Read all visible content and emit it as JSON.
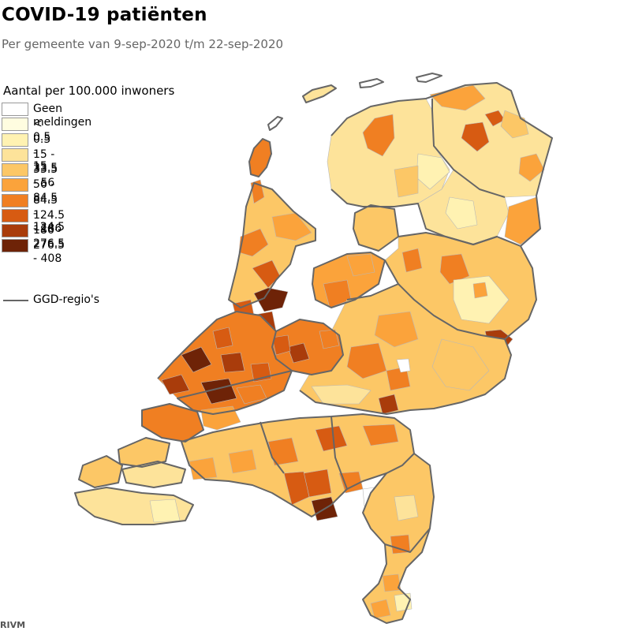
{
  "title": "COVID-19 patiënten",
  "subtitle": "Per gemeente van 9-sep-2020 t/m 22-sep-2020",
  "legend": {
    "title": "Aantal per 100.000 inwoners",
    "classes": [
      {
        "label": "Geen meldingen",
        "color": "#ffffff"
      },
      {
        "label": "< 0.5",
        "color": "#fffde0"
      },
      {
        "label": "0.5 - 15",
        "color": "#fff2b2"
      },
      {
        "label": "15 - 33.5",
        "color": "#fde39a"
      },
      {
        "label": "33.5 - 56",
        "color": "#fcc766"
      },
      {
        "label": "56 - 84,5",
        "color": "#fba33b"
      },
      {
        "label": "84.5 - 124.5",
        "color": "#f07f22"
      },
      {
        "label": "124.5 - 186",
        "color": "#d75b12"
      },
      {
        "label": "186 - 276.5",
        "color": "#a93c0b"
      },
      {
        "label": "276.5 - 408",
        "color": "#6e2307"
      }
    ],
    "boundary": {
      "label": "GGD-regio's",
      "color": "#666666"
    }
  },
  "source": "RIVM"
}
